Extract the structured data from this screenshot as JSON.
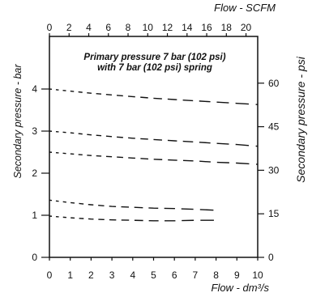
{
  "chart_data": {
    "type": "line",
    "line_style": "dashed",
    "grid": false,
    "annotation": {
      "line1": "Primary pressure 7 bar (102 psi)",
      "line2": "with 7 bar (102 psi) spring"
    },
    "xlabel": "Flow - dm³/s",
    "ylabel": "Secondary pressure - bar",
    "x2label": "Flow - SCFM",
    "y2label": "Secondary pressure - psi",
    "xlim": [
      0,
      10
    ],
    "ylim": [
      0,
      5.25
    ],
    "x2lim": [
      0,
      21.19
    ],
    "y2lim": [
      0,
      76.1
    ],
    "x_ticks": [
      0,
      1,
      2,
      3,
      4,
      5,
      6,
      7,
      8,
      9,
      10
    ],
    "y_ticks": [
      0,
      1,
      2,
      3,
      4
    ],
    "x2_ticks": [
      0,
      2,
      4,
      6,
      8,
      10,
      12,
      14,
      16,
      18,
      20
    ],
    "y2_ticks": [
      0,
      15,
      30,
      45,
      60
    ],
    "series": [
      {
        "x": [
          0,
          1,
          2,
          3,
          4,
          5,
          6,
          7,
          8,
          9,
          10
        ],
        "y": [
          4.0,
          3.95,
          3.9,
          3.86,
          3.82,
          3.78,
          3.75,
          3.72,
          3.69,
          3.66,
          3.63
        ]
      },
      {
        "x": [
          0,
          1,
          2,
          3,
          4,
          5,
          6,
          7,
          8,
          9,
          10
        ],
        "y": [
          3.0,
          2.96,
          2.91,
          2.87,
          2.83,
          2.8,
          2.77,
          2.74,
          2.71,
          2.68,
          2.64
        ]
      },
      {
        "x": [
          0,
          1,
          2,
          3,
          4,
          5,
          6,
          7,
          8,
          9,
          10
        ],
        "y": [
          2.5,
          2.46,
          2.42,
          2.39,
          2.36,
          2.33,
          2.31,
          2.29,
          2.26,
          2.24,
          2.21
        ]
      },
      {
        "x": [
          0,
          1,
          2,
          3,
          4,
          5,
          6,
          7,
          8
        ],
        "y": [
          1.36,
          1.3,
          1.25,
          1.21,
          1.19,
          1.17,
          1.16,
          1.14,
          1.12
        ]
      },
      {
        "x": [
          0,
          1,
          2,
          3,
          4,
          5,
          6,
          7,
          8
        ],
        "y": [
          0.98,
          0.94,
          0.91,
          0.89,
          0.88,
          0.87,
          0.87,
          0.88,
          0.88
        ]
      }
    ]
  }
}
